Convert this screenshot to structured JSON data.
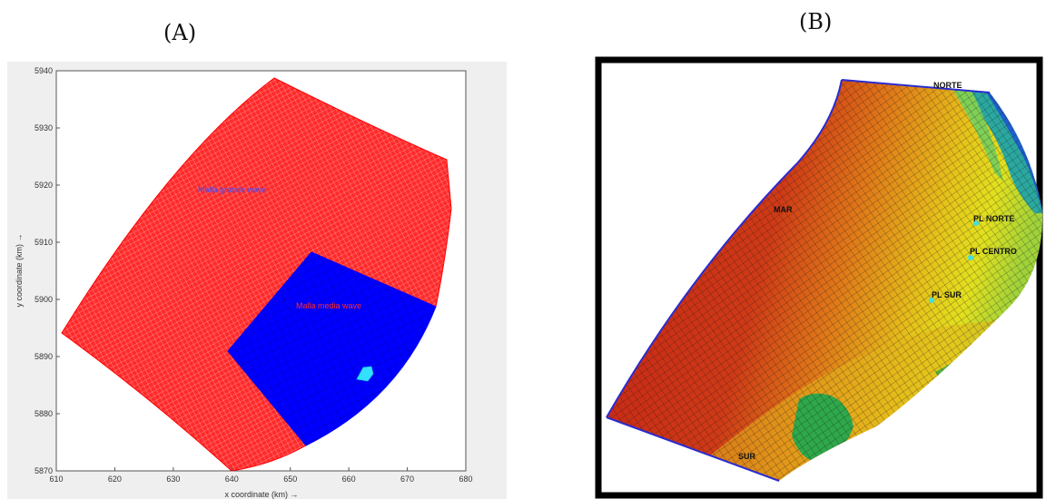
{
  "panels": {
    "a": {
      "label": "(A)"
    },
    "b": {
      "label": "(B)"
    }
  },
  "plot_a": {
    "xlabel": "x coordinate (km) →",
    "ylabel": "y coordinate (km) →",
    "xlim": [
      610,
      680
    ],
    "ylim": [
      5870,
      5940
    ],
    "xticks": [
      "610",
      "620",
      "630",
      "640",
      "650",
      "660",
      "670",
      "680"
    ],
    "yticks": [
      "5870",
      "5880",
      "5890",
      "5900",
      "5910",
      "5920",
      "5930",
      "5940"
    ],
    "grids": {
      "large": {
        "label": "Malla grande wave",
        "color": "#ff0000"
      },
      "medium": {
        "label": "Malla media wave",
        "color": "#0000ff"
      },
      "small": {
        "color": "#33e0ff"
      }
    }
  },
  "map_b": {
    "stations": [
      "NORTE",
      "MAR",
      "PL NORTE",
      "PL CENTRO",
      "PL SUR",
      "SUR"
    ],
    "colors": {
      "deep": "#c0281a",
      "mid": "#e07a18",
      "shallow": "#e6d81c",
      "green": "#2ea84a",
      "blue": "#1e5fcf",
      "boundary": "#2b2bd0",
      "station": "#40e0e0"
    }
  }
}
